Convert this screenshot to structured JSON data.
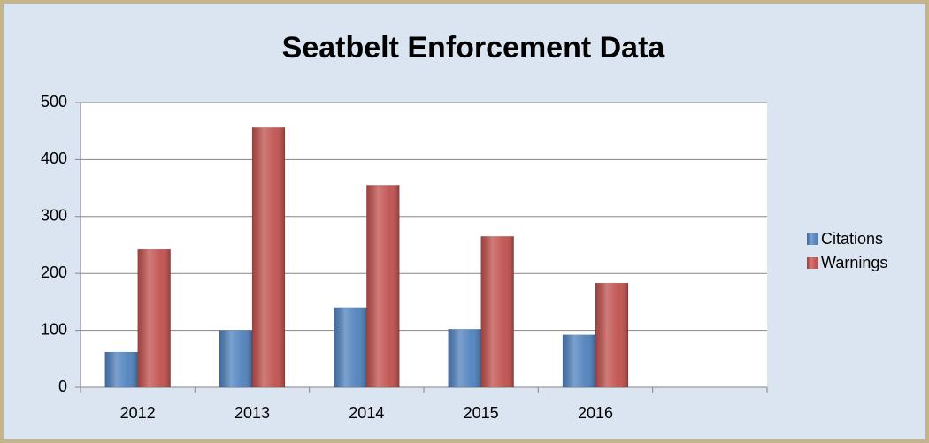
{
  "chart_data": {
    "type": "bar",
    "title": "Seatbelt Enforcement Data",
    "categories": [
      "2012",
      "2013",
      "2014",
      "2015",
      "2016",
      null
    ],
    "series": [
      {
        "name": "Citations",
        "color": "#4f81bd",
        "values": [
          62,
          100,
          140,
          102,
          92,
          null
        ]
      },
      {
        "name": "Warnings",
        "color": "#c0504d",
        "values": [
          242,
          456,
          355,
          265,
          183,
          null
        ]
      }
    ],
    "ylim": [
      0,
      500
    ],
    "yticks": [
      0,
      100,
      200,
      300,
      400,
      500
    ],
    "grid": true,
    "legend": "right"
  }
}
